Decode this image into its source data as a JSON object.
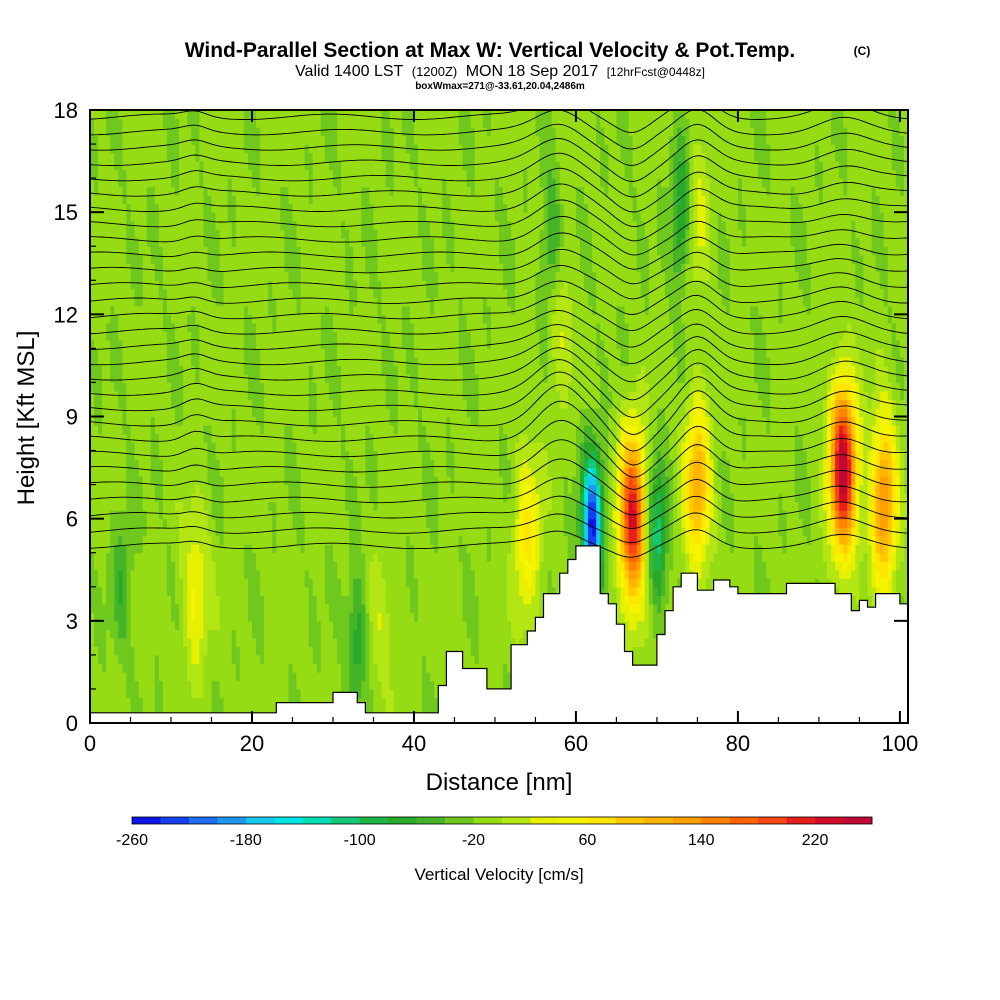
{
  "chart_data": {
    "type": "heatmap",
    "title": "Wind-Parallel Section at Max W: Vertical Velocity & Pot.Temp.",
    "title_mark": "(C)",
    "subtitle_main": "Valid 1400 LST",
    "subtitle_utc": "(1200Z)",
    "subtitle_date": "MON 18 Sep 2017",
    "subtitle_fcst": "[12hrFcst@0448z]",
    "subtitle2": "boxWmax=271@-33.61,20.04,2486m",
    "xlabel": "Distance [nm]",
    "ylabel": "Height [Kft MSL]",
    "xlim": [
      0,
      101
    ],
    "ylim": [
      0,
      18
    ],
    "xticks": [
      0,
      20,
      40,
      60,
      80,
      100
    ],
    "xtick_labels": [
      "0",
      "20",
      "40",
      "60",
      "80",
      "100"
    ],
    "yticks": [
      0,
      3,
      6,
      9,
      12,
      15,
      18
    ],
    "ytick_labels": [
      "0",
      "3",
      "6",
      "9",
      "12",
      "15",
      "18"
    ],
    "colorbar": {
      "label": "Vertical Velocity [cm/s]",
      "min": -260,
      "max": 260,
      "tick_values": [
        -260,
        -180,
        -100,
        -20,
        60,
        140,
        220
      ],
      "tick_labels": [
        "-260",
        "-180",
        "-100",
        "-20",
        "60",
        "140",
        "220"
      ],
      "colors": [
        "#0a14e6",
        "#1440f0",
        "#1e6ef0",
        "#1e96f0",
        "#14c8f0",
        "#00e6e6",
        "#00dcb4",
        "#14c878",
        "#1eb446",
        "#28aa28",
        "#46b428",
        "#6ec81e",
        "#96dc14",
        "#b4e614",
        "#e6f000",
        "#f5f500",
        "#ffe600",
        "#ffc800",
        "#ffb400",
        "#ffa000",
        "#ff8200",
        "#ff6400",
        "#f54614",
        "#e61e1e",
        "#d20a28",
        "#be0a32"
      ]
    },
    "terrain": [
      [
        0,
        0.3
      ],
      [
        22,
        0.3
      ],
      [
        23,
        0.6
      ],
      [
        29,
        0.6
      ],
      [
        30,
        0.9
      ],
      [
        32,
        0.9
      ],
      [
        33,
        0.6
      ],
      [
        34,
        0.3
      ],
      [
        42,
        0.3
      ],
      [
        43,
        1.1
      ],
      [
        44,
        2.1
      ],
      [
        45,
        2.1
      ],
      [
        46,
        1.6
      ],
      [
        48,
        1.6
      ],
      [
        49,
        1.0
      ],
      [
        51,
        1.0
      ],
      [
        52,
        2.3
      ],
      [
        54,
        2.7
      ],
      [
        55,
        3.1
      ],
      [
        56,
        3.8
      ],
      [
        58,
        4.4
      ],
      [
        59,
        4.8
      ],
      [
        60,
        5.2
      ],
      [
        62,
        5.2
      ],
      [
        63,
        3.8
      ],
      [
        64,
        3.5
      ],
      [
        65,
        2.9
      ],
      [
        66,
        2.1
      ],
      [
        67,
        1.7
      ],
      [
        68,
        1.7
      ],
      [
        70,
        2.6
      ],
      [
        71,
        3.3
      ],
      [
        72,
        4.0
      ],
      [
        73,
        4.4
      ],
      [
        74,
        4.4
      ],
      [
        75,
        3.9
      ],
      [
        77,
        4.2
      ],
      [
        79,
        4.0
      ],
      [
        80,
        3.8
      ],
      [
        85,
        3.8
      ],
      [
        86,
        4.1
      ],
      [
        90,
        4.1
      ],
      [
        92,
        3.8
      ],
      [
        94,
        3.3
      ],
      [
        95,
        3.6
      ],
      [
        96,
        3.4
      ],
      [
        97,
        3.8
      ],
      [
        99,
        3.8
      ],
      [
        100,
        3.5
      ],
      [
        101,
        3.5
      ]
    ],
    "updrafts": [
      {
        "x": 13,
        "z": 3.8,
        "w": 60
      },
      {
        "x": 36,
        "z": 3.0,
        "w": 30
      },
      {
        "x": 54,
        "z": 5.5,
        "w": 80
      },
      {
        "x": 58,
        "z": 12.0,
        "w": 40
      },
      {
        "x": 67,
        "z": 6.0,
        "w": 240
      },
      {
        "x": 75,
        "z": 7.0,
        "w": 130
      },
      {
        "x": 93,
        "z": 7.5,
        "w": 271
      },
      {
        "x": 98,
        "z": 6.5,
        "w": 160
      },
      {
        "x": 75,
        "z": 15.0,
        "w": 40
      }
    ],
    "downdrafts": [
      {
        "x": 62,
        "z": 5.8,
        "w": -230
      },
      {
        "x": 70,
        "z": 5.5,
        "w": -100
      },
      {
        "x": 33,
        "z": 2.5,
        "w": -60
      },
      {
        "x": 57,
        "z": 14.0,
        "w": -60
      },
      {
        "x": 73,
        "z": 15.0,
        "w": -80
      },
      {
        "x": 4,
        "z": 4.2,
        "w": -40
      }
    ]
  }
}
